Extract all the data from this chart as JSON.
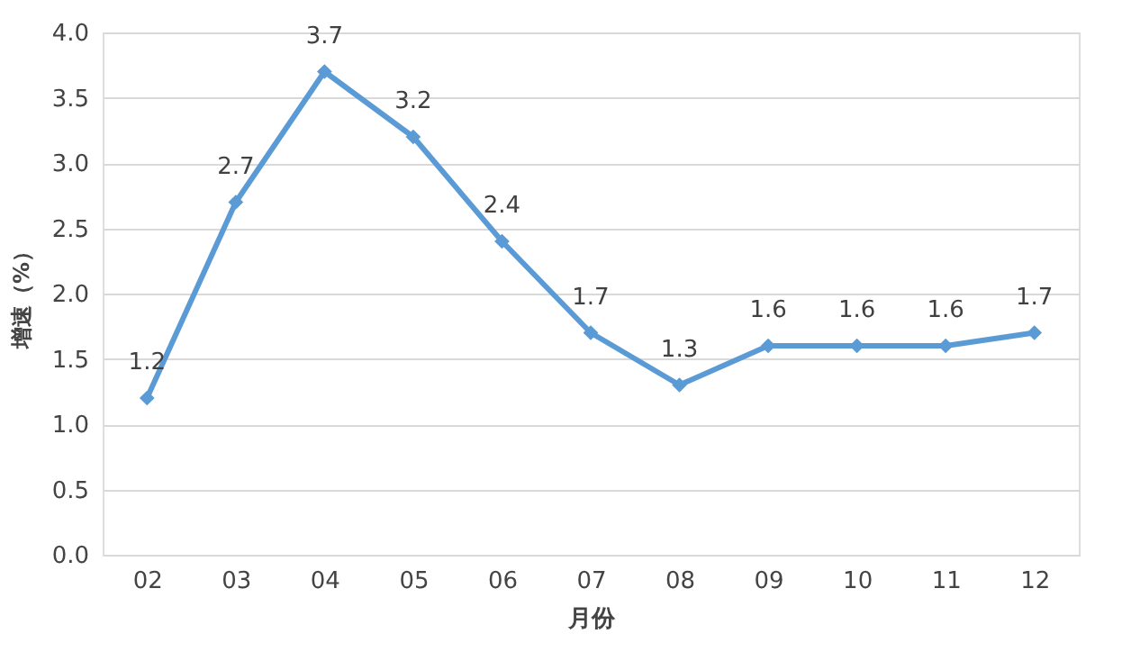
{
  "chart_data": {
    "type": "line",
    "xlabel": "月份",
    "ylabel": "增速（%）",
    "categories": [
      "02",
      "03",
      "04",
      "05",
      "06",
      "07",
      "08",
      "09",
      "10",
      "11",
      "12"
    ],
    "series": [
      {
        "color": "#5b9bd5",
        "values": [
          1.2,
          2.7,
          3.7,
          3.2,
          2.4,
          1.7,
          1.3,
          1.6,
          1.6,
          1.6,
          1.7
        ]
      }
    ],
    "ylim": [
      0,
      4
    ],
    "yticks": [
      {
        "value": 0,
        "label": "0.0"
      },
      {
        "value": 0.5,
        "label": "0.5"
      },
      {
        "value": 1,
        "label": "1.0"
      },
      {
        "value": 1.5,
        "label": "1.5"
      },
      {
        "value": 2,
        "label": "2.0"
      },
      {
        "value": 2.5,
        "label": "2.5"
      },
      {
        "value": 3,
        "label": "3.0"
      },
      {
        "value": 3.5,
        "label": "3.5"
      },
      {
        "value": 4,
        "label": "4.0"
      }
    ],
    "grid": "y",
    "marker": "diamond",
    "line_style": "solid",
    "data_labels": true
  }
}
